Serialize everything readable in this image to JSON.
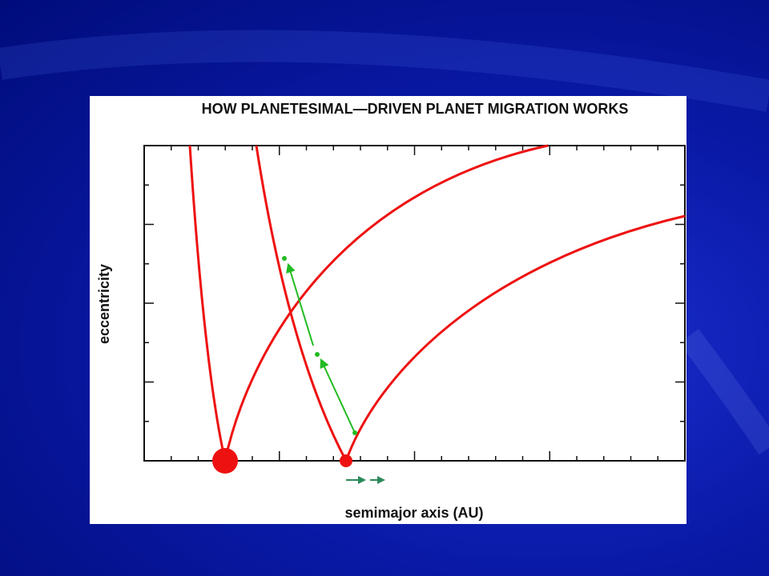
{
  "figure": {
    "title": "HOW PLANETESIMAL—DRIVEN PLANET MIGRATION WORKS",
    "y_label": "eccentricity",
    "x_label": "semimajor axis (AU)"
  }
}
